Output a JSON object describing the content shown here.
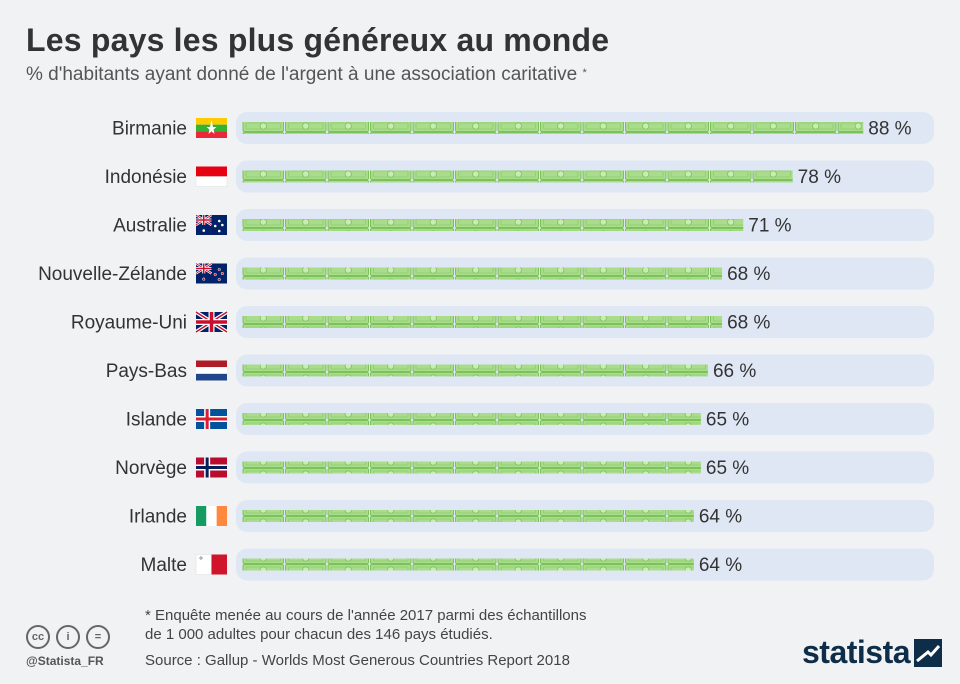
{
  "title": "Les pays les plus généreux au monde",
  "subtitle": "% d'habitants ayant donné de l'argent à une association caritative",
  "subtitle_mark": "*",
  "footnote": "* Enquête menée au cours de l'année 2017 parmi des échantillons\n   de 1 000 adultes pour chacun des 146 pays étudiés.",
  "source": "Source : Gallup - Worlds Most Generous Countries Report 2018",
  "handle": "@Statista_FR",
  "brand": "statista",
  "license_icons": [
    "cc-icon",
    "by-icon",
    "nd-icon"
  ],
  "license_glyphs": [
    "cc",
    "i",
    "="
  ],
  "colors": {
    "bar_track": "#dfe7f5",
    "note_fill": "#a9dc8b",
    "note_stroke": "#7cc25a",
    "brand": "#0e2d49"
  },
  "chart_data": {
    "type": "bar",
    "orientation": "horizontal",
    "categories": [
      "Birmanie",
      "Indonésie",
      "Australie",
      "Nouvelle-Zélande",
      "Royaume-Uni",
      "Pays-Bas",
      "Islande",
      "Norvège",
      "Irlande",
      "Malte"
    ],
    "values": [
      88,
      78,
      71,
      68,
      68,
      66,
      65,
      65,
      64,
      64
    ],
    "value_suffix": " %",
    "flags": [
      "myanmar-flag",
      "indonesia-flag",
      "australia-flag",
      "new-zealand-flag",
      "uk-flag",
      "netherlands-flag",
      "iceland-flag",
      "norway-flag",
      "ireland-flag",
      "malta-flag"
    ],
    "xlim": [
      0,
      100
    ],
    "grid": false,
    "legend": "none"
  }
}
